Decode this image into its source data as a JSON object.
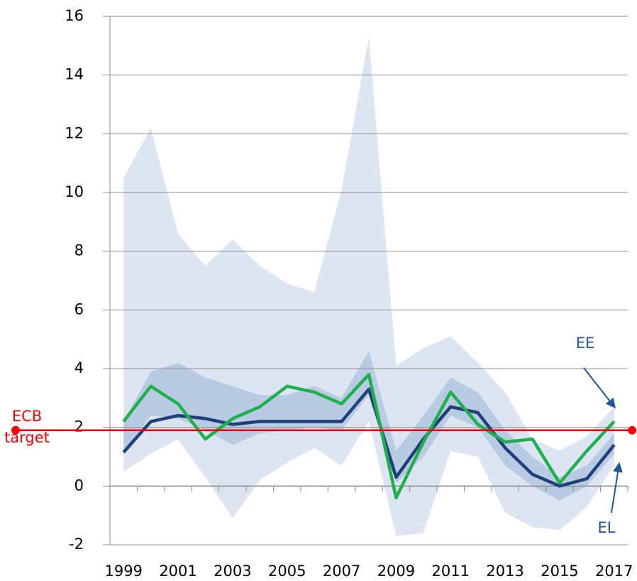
{
  "chart_data": {
    "type": "line",
    "categories": [
      "1999",
      null,
      "2001",
      null,
      "2003",
      null,
      "2005",
      null,
      "2007",
      null,
      "2009",
      null,
      "2011",
      null,
      "2013",
      null,
      "2015",
      null,
      "2017"
    ],
    "ylim": [
      -2,
      16
    ],
    "yticks": [
      -2,
      0,
      2,
      4,
      6,
      8,
      10,
      12,
      14,
      16
    ],
    "grid": true,
    "bands": [
      {
        "color": "#dce5f1",
        "lower": [
          0.5,
          1.1,
          1.6,
          0.3,
          -1.1,
          0.2,
          0.8,
          1.3,
          0.7,
          2.2,
          -1.7,
          -1.6,
          1.2,
          1.0,
          -0.9,
          -1.4,
          -1.5,
          -0.7,
          0.7
        ],
        "upper": [
          10.5,
          12.2,
          8.6,
          7.5,
          8.4,
          7.5,
          6.9,
          6.6,
          10.1,
          15.3,
          4.1,
          4.7,
          5.1,
          4.2,
          3.2,
          1.6,
          1.2,
          1.7,
          2.7
        ]
      },
      {
        "color": "#b9cbe3",
        "lower": [
          1.1,
          2.4,
          2.3,
          1.9,
          1.4,
          1.8,
          1.9,
          2.0,
          1.9,
          3.1,
          0.1,
          1.0,
          2.4,
          2.0,
          0.7,
          0.0,
          -0.5,
          0.0,
          1.1
        ],
        "upper": [
          2.2,
          3.9,
          4.2,
          3.7,
          3.4,
          3.1,
          3.1,
          3.4,
          3.0,
          4.6,
          1.2,
          2.4,
          3.7,
          3.2,
          1.9,
          1.0,
          0.3,
          0.7,
          1.8
        ]
      }
    ],
    "series": [
      {
        "name": "EL",
        "color": "#1f3f7d",
        "values": [
          1.15,
          2.2,
          2.4,
          2.3,
          2.1,
          2.2,
          2.2,
          2.2,
          2.2,
          3.3,
          0.3,
          1.6,
          2.7,
          2.5,
          1.3,
          0.4,
          0.0,
          0.25,
          1.4
        ]
      },
      {
        "name": "EE",
        "color": "#1db04c",
        "values": [
          2.2,
          3.4,
          2.8,
          1.6,
          2.3,
          2.7,
          3.4,
          3.2,
          2.8,
          3.8,
          -0.4,
          1.5,
          3.2,
          2.1,
          1.5,
          1.6,
          0.1,
          1.2,
          2.2
        ]
      }
    ],
    "target_line": {
      "value": 1.9,
      "color": "#ff0000",
      "label": [
        "ECB",
        "target"
      ]
    }
  }
}
